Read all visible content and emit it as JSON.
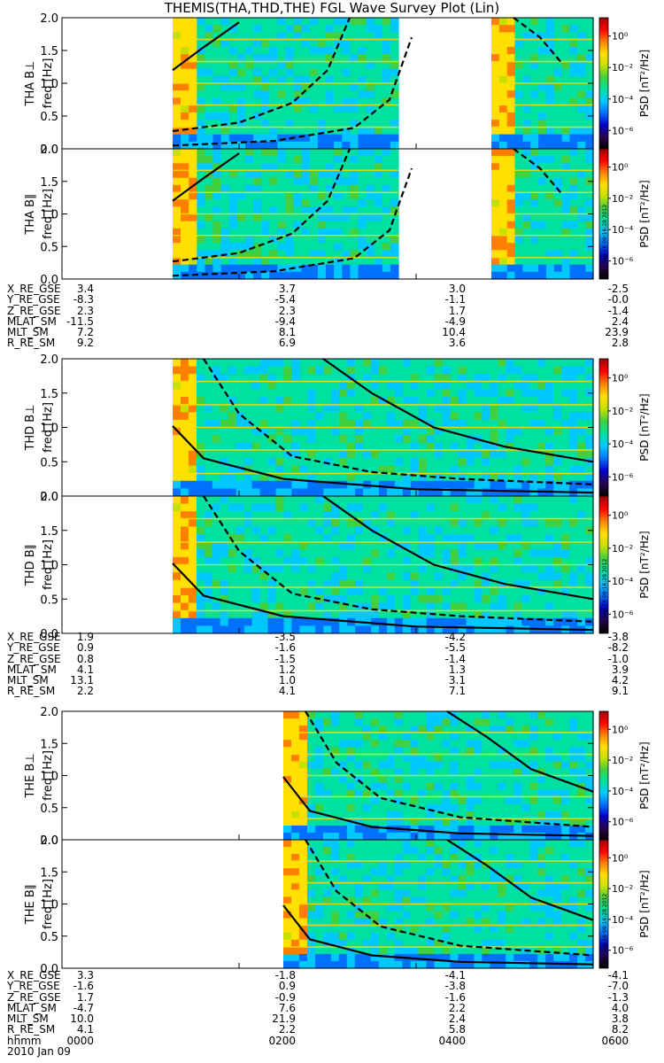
{
  "chart_data": {
    "type": "heatmap",
    "title": "THEMIS(THA,THD,THE) FGL Wave Survey Plot (Lin)",
    "date_label": "2010 Jan 09",
    "time_axis_label": "hhmm",
    "time_ticks": [
      "0000",
      "0200",
      "0400",
      "0600"
    ],
    "time_range_hours": [
      0,
      6
    ],
    "freq_label": "freq [Hz]",
    "freq_range_hz": [
      0.0,
      2.0
    ],
    "freq_ticks": [
      "0.0",
      "0.5",
      "1.0",
      "1.5",
      "2.0"
    ],
    "colorbar": {
      "label": "PSD [nT²/Hz]",
      "scale": "log",
      "range": [
        1e-07,
        10
      ],
      "ticks": [
        "10⁰",
        "10⁻²",
        "10⁻⁴",
        "10⁻⁶"
      ],
      "colormap": [
        "#000000",
        "#2a0050",
        "#0000c8",
        "#0070ff",
        "#00c8ff",
        "#00e0a0",
        "#40d040",
        "#c8e000",
        "#ffe000",
        "#ff8000",
        "#ff0000",
        "#a00000"
      ]
    },
    "stamp": "Sun Sep 16 09:16:28 2012",
    "panels": [
      {
        "probe": "THA",
        "component": "B⊥",
        "ylabel": "THA B⊥",
        "coverage_hours": [
          [
            1.25,
            3.8
          ],
          [
            4.85,
            6.0
          ]
        ],
        "curves": [
          {
            "style": "solid",
            "points": [
              [
                1.25,
                1.2
              ],
              [
                1.6,
                1.55
              ],
              [
                2.0,
                1.93
              ]
            ]
          },
          {
            "style": "dashed",
            "points": [
              [
                1.25,
                0.27
              ],
              [
                2.0,
                0.4
              ],
              [
                2.6,
                0.7
              ],
              [
                3.0,
                1.2
              ],
              [
                3.25,
                2.0
              ]
            ]
          },
          {
            "style": "dashed",
            "points": [
              [
                1.25,
                0.05
              ],
              [
                2.4,
                0.12
              ],
              [
                3.3,
                0.32
              ],
              [
                3.7,
                0.75
              ],
              [
                3.95,
                1.7
              ]
            ]
          },
          {
            "style": "dashed",
            "points": [
              [
                5.1,
                2.0
              ],
              [
                5.4,
                1.7
              ],
              [
                5.65,
                1.3
              ]
            ]
          }
        ]
      },
      {
        "probe": "THA",
        "component": "B∥",
        "ylabel": "THA B∥",
        "coverage_hours": [
          [
            1.25,
            3.8
          ],
          [
            4.85,
            6.0
          ]
        ],
        "curves": [
          {
            "style": "solid",
            "points": [
              [
                1.25,
                1.2
              ],
              [
                1.6,
                1.55
              ],
              [
                2.0,
                1.93
              ]
            ]
          },
          {
            "style": "dashed",
            "points": [
              [
                1.25,
                0.27
              ],
              [
                2.0,
                0.4
              ],
              [
                2.6,
                0.7
              ],
              [
                3.0,
                1.2
              ],
              [
                3.25,
                2.0
              ]
            ]
          },
          {
            "style": "dashed",
            "points": [
              [
                1.25,
                0.05
              ],
              [
                2.4,
                0.12
              ],
              [
                3.3,
                0.32
              ],
              [
                3.7,
                0.75
              ],
              [
                3.95,
                1.7
              ]
            ]
          },
          {
            "style": "dashed",
            "points": [
              [
                5.1,
                2.0
              ],
              [
                5.4,
                1.7
              ],
              [
                5.65,
                1.3
              ]
            ]
          }
        ]
      },
      {
        "probe": "THD",
        "component": "B⊥",
        "ylabel": "THD B⊥",
        "coverage_hours": [
          [
            1.25,
            6.0
          ]
        ],
        "curves": [
          {
            "style": "solid",
            "points": [
              [
                1.25,
                1.02
              ],
              [
                1.6,
                0.55
              ],
              [
                2.5,
                0.25
              ],
              [
                4.0,
                0.1
              ],
              [
                6.0,
                0.05
              ]
            ]
          },
          {
            "style": "dashed",
            "points": [
              [
                1.6,
                2.0
              ],
              [
                2.0,
                1.2
              ],
              [
                2.6,
                0.58
              ],
              [
                3.5,
                0.35
              ],
              [
                4.5,
                0.25
              ],
              [
                6.0,
                0.17
              ]
            ]
          },
          {
            "style": "solid",
            "points": [
              [
                2.95,
                2.0
              ],
              [
                3.5,
                1.5
              ],
              [
                4.2,
                1.0
              ],
              [
                5.0,
                0.72
              ],
              [
                6.0,
                0.5
              ]
            ]
          }
        ]
      },
      {
        "probe": "THD",
        "component": "B∥",
        "ylabel": "THD B∥",
        "coverage_hours": [
          [
            1.25,
            6.0
          ]
        ],
        "curves": [
          {
            "style": "solid",
            "points": [
              [
                1.25,
                1.02
              ],
              [
                1.6,
                0.55
              ],
              [
                2.5,
                0.25
              ],
              [
                4.0,
                0.1
              ],
              [
                6.0,
                0.05
              ]
            ]
          },
          {
            "style": "dashed",
            "points": [
              [
                1.6,
                2.0
              ],
              [
                2.0,
                1.2
              ],
              [
                2.6,
                0.58
              ],
              [
                3.5,
                0.35
              ],
              [
                4.5,
                0.25
              ],
              [
                6.0,
                0.17
              ]
            ]
          },
          {
            "style": "solid",
            "points": [
              [
                2.95,
                2.0
              ],
              [
                3.5,
                1.5
              ],
              [
                4.2,
                1.0
              ],
              [
                5.0,
                0.72
              ],
              [
                6.0,
                0.5
              ]
            ]
          }
        ]
      },
      {
        "probe": "THE",
        "component": "B⊥",
        "ylabel": "THE B⊥",
        "coverage_hours": [
          [
            2.5,
            6.0
          ]
        ],
        "curves": [
          {
            "style": "solid",
            "points": [
              [
                2.5,
                0.98
              ],
              [
                2.8,
                0.45
              ],
              [
                3.5,
                0.2
              ],
              [
                4.5,
                0.1
              ],
              [
                6.0,
                0.06
              ]
            ]
          },
          {
            "style": "dashed",
            "points": [
              [
                2.75,
                2.0
              ],
              [
                3.1,
                1.2
              ],
              [
                3.6,
                0.65
              ],
              [
                4.5,
                0.35
              ],
              [
                6.0,
                0.2
              ]
            ]
          },
          {
            "style": "solid",
            "points": [
              [
                4.35,
                2.0
              ],
              [
                4.8,
                1.6
              ],
              [
                5.3,
                1.1
              ],
              [
                6.0,
                0.75
              ]
            ]
          }
        ]
      },
      {
        "probe": "THE",
        "component": "B∥",
        "ylabel": "THE B∥",
        "coverage_hours": [
          [
            2.5,
            6.0
          ]
        ],
        "curves": [
          {
            "style": "solid",
            "points": [
              [
                2.5,
                0.98
              ],
              [
                2.8,
                0.45
              ],
              [
                3.5,
                0.2
              ],
              [
                4.5,
                0.1
              ],
              [
                6.0,
                0.06
              ]
            ]
          },
          {
            "style": "dashed",
            "points": [
              [
                2.75,
                2.0
              ],
              [
                3.1,
                1.2
              ],
              [
                3.6,
                0.65
              ],
              [
                4.5,
                0.35
              ],
              [
                6.0,
                0.2
              ]
            ]
          },
          {
            "style": "solid",
            "points": [
              [
                4.35,
                2.0
              ],
              [
                4.8,
                1.6
              ],
              [
                5.3,
                1.1
              ],
              [
                6.0,
                0.75
              ]
            ]
          }
        ]
      }
    ],
    "ephemeris": [
      {
        "probe": "THA",
        "rows": [
          {
            "label": "X_RE_GSE",
            "values": [
              "3.4",
              "3.7",
              "3.0",
              "-2.5"
            ]
          },
          {
            "label": "Y_RE_GSE",
            "values": [
              "-8.3",
              "-5.4",
              "-1.1",
              "-0.0"
            ]
          },
          {
            "label": "Z_RE_GSE",
            "values": [
              "2.3",
              "2.3",
              "1.7",
              "-1.4"
            ]
          },
          {
            "label": "MLAT_SM",
            "values": [
              "-11.5",
              "-9.4",
              "-4.9",
              "2.4"
            ]
          },
          {
            "label": "MLT_SM",
            "values": [
              "7.2",
              "8.1",
              "10.4",
              "23.9"
            ]
          },
          {
            "label": "R_RE_SM",
            "values": [
              "9.2",
              "6.9",
              "3.6",
              "2.8"
            ]
          }
        ]
      },
      {
        "probe": "THD",
        "rows": [
          {
            "label": "X_RE_GSE",
            "values": [
              "1.9",
              "-3.5",
              "-4.2",
              "-3.8"
            ]
          },
          {
            "label": "Y_RE_GSE",
            "values": [
              "0.9",
              "-1.6",
              "-5.5",
              "-8.2"
            ]
          },
          {
            "label": "Z_RE_GSE",
            "values": [
              "0.8",
              "-1.5",
              "-1.4",
              "-1.0"
            ]
          },
          {
            "label": "MLAT_SM",
            "values": [
              "4.1",
              "1.2",
              "1.3",
              "3.9"
            ]
          },
          {
            "label": "MLT_SM",
            "values": [
              "13.1",
              "1.0",
              "3.1",
              "4.2"
            ]
          },
          {
            "label": "R_RE_SM",
            "values": [
              "2.2",
              "4.1",
              "7.1",
              "9.1"
            ]
          }
        ]
      },
      {
        "probe": "THE",
        "rows": [
          {
            "label": "X_RE_GSE",
            "values": [
              "3.3",
              "-1.8",
              "-4.1",
              "-4.1"
            ]
          },
          {
            "label": "Y_RE_GSE",
            "values": [
              "-1.6",
              "0.9",
              "-3.8",
              "-7.0"
            ]
          },
          {
            "label": "Z_RE_GSE",
            "values": [
              "1.7",
              "-0.9",
              "-1.6",
              "-1.3"
            ]
          },
          {
            "label": "MLAT_SM",
            "values": [
              "-4.7",
              "7.6",
              "2.2",
              "4.0"
            ]
          },
          {
            "label": "MLT_SM",
            "values": [
              "10.0",
              "21.9",
              "2.4",
              "3.8"
            ]
          },
          {
            "label": "R_RE_SM",
            "values": [
              "4.1",
              "2.2",
              "5.8",
              "8.2"
            ]
          }
        ]
      }
    ]
  }
}
